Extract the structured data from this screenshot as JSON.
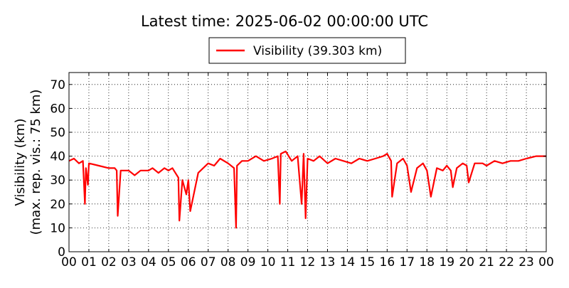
{
  "chart_data": {
    "type": "line",
    "title": "Latest time: 2025-06-02 00:00:00 UTC",
    "ylabel_lines": [
      "Visibility (km)",
      "(max. rep. vis.: 75 km)"
    ],
    "xlabel": "",
    "xlim": [
      0,
      24
    ],
    "ylim": [
      0,
      75
    ],
    "x_ticks": [
      "00",
      "01",
      "02",
      "03",
      "04",
      "05",
      "06",
      "07",
      "08",
      "09",
      "10",
      "11",
      "12",
      "13",
      "14",
      "15",
      "16",
      "17",
      "18",
      "19",
      "20",
      "21",
      "22",
      "23",
      "00"
    ],
    "y_ticks": [
      0,
      10,
      20,
      30,
      40,
      50,
      60,
      70
    ],
    "grid": true,
    "legend_position": "top-center",
    "series": [
      {
        "name": "Visibility (39.303 km)",
        "color": "#ff0000",
        "x_unit": "hours since 00:00 UTC",
        "x": [
          0.0,
          0.25,
          0.5,
          0.7,
          0.8,
          0.85,
          0.95,
          1.0,
          1.5,
          2.0,
          2.3,
          2.4,
          2.45,
          2.6,
          3.0,
          3.3,
          3.6,
          4.0,
          4.2,
          4.5,
          4.8,
          5.0,
          5.2,
          5.5,
          5.55,
          5.7,
          5.9,
          6.0,
          6.1,
          6.5,
          7.0,
          7.3,
          7.6,
          8.0,
          8.3,
          8.4,
          8.45,
          8.7,
          9.0,
          9.4,
          9.8,
          10.2,
          10.5,
          10.6,
          10.65,
          10.9,
          11.2,
          11.5,
          11.7,
          11.8,
          11.9,
          12.0,
          12.3,
          12.6,
          13.0,
          13.4,
          13.8,
          14.2,
          14.6,
          15.0,
          15.4,
          15.8,
          16.0,
          16.2,
          16.25,
          16.5,
          16.8,
          17.0,
          17.2,
          17.5,
          17.8,
          18.0,
          18.2,
          18.5,
          18.8,
          19.0,
          19.2,
          19.3,
          19.5,
          19.8,
          20.0,
          20.1,
          20.4,
          20.8,
          21.0,
          21.4,
          21.8,
          22.2,
          22.6,
          23.0,
          23.5,
          24.0
        ],
        "y": [
          38,
          39,
          37,
          38,
          20,
          35,
          28,
          37,
          36,
          35,
          35,
          34,
          15,
          34,
          34,
          32,
          34,
          34,
          35,
          33,
          35,
          34,
          35,
          31,
          13,
          30,
          24,
          30,
          17,
          33,
          37,
          36,
          39,
          37,
          35,
          10,
          36,
          38,
          38,
          40,
          38,
          39,
          40,
          20,
          41,
          42,
          38,
          40,
          20,
          41,
          14,
          39,
          38,
          40,
          37,
          39,
          38,
          37,
          39,
          38,
          39,
          40,
          41,
          38,
          23,
          37,
          39,
          36,
          25,
          35,
          37,
          34,
          23,
          35,
          34,
          36,
          34,
          27,
          35,
          37,
          36,
          29,
          37,
          37,
          36,
          38,
          37,
          38,
          38,
          39,
          40,
          40
        ]
      }
    ]
  }
}
